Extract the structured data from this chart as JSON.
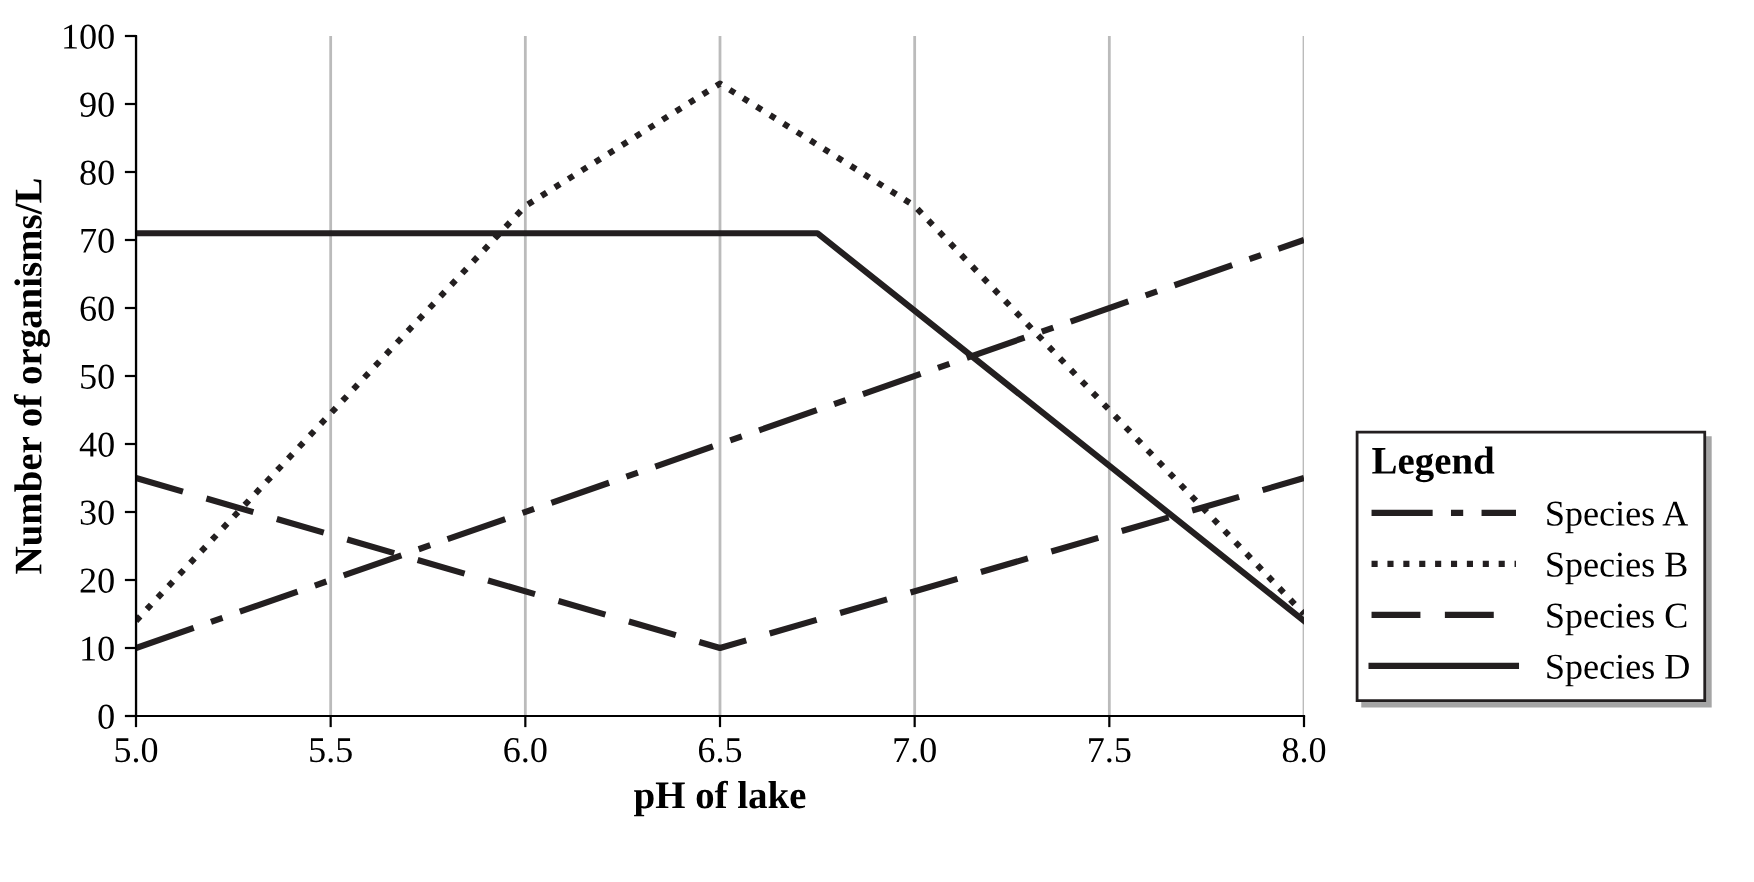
{
  "chart_data": {
    "type": "line",
    "xlabel": "pH of lake",
    "ylabel": "Number of organisms/L",
    "legend_title": "Legend",
    "legend": "right",
    "grid": "x",
    "xlim": [
      5.0,
      8.0
    ],
    "xticks": [
      {
        "value": 5.0,
        "label": "5.0"
      },
      {
        "value": 5.5,
        "label": "5.5"
      },
      {
        "value": 6.0,
        "label": "6.0"
      },
      {
        "value": 6.5,
        "label": "6.5"
      },
      {
        "value": 7.0,
        "label": "7.0"
      },
      {
        "value": 7.5,
        "label": "7.5"
      },
      {
        "value": 8.0,
        "label": "8.0"
      }
    ],
    "ylim": [
      0,
      100
    ],
    "yticks": [
      0,
      10,
      20,
      30,
      40,
      50,
      60,
      70,
      80,
      90,
      100
    ],
    "series": [
      {
        "name": "Species A",
        "color": "#231f20",
        "line_style": "dashdot",
        "x": [
          5.0,
          8.0
        ],
        "values": [
          10,
          70
        ]
      },
      {
        "name": "Species B",
        "color": "#231f20",
        "line_style": "dotted",
        "x": [
          5.0,
          6.0,
          6.5,
          7.0,
          8.0
        ],
        "values": [
          14,
          75,
          93,
          75,
          15
        ]
      },
      {
        "name": "Species C",
        "color": "#231f20",
        "line_style": "dashed",
        "x": [
          5.0,
          6.5,
          8.0
        ],
        "values": [
          35,
          10,
          35
        ]
      },
      {
        "name": "Species D",
        "color": "#231f20",
        "line_style": "solid",
        "x": [
          5.0,
          6.75,
          8.0
        ],
        "values": [
          71,
          71,
          14
        ]
      }
    ]
  }
}
